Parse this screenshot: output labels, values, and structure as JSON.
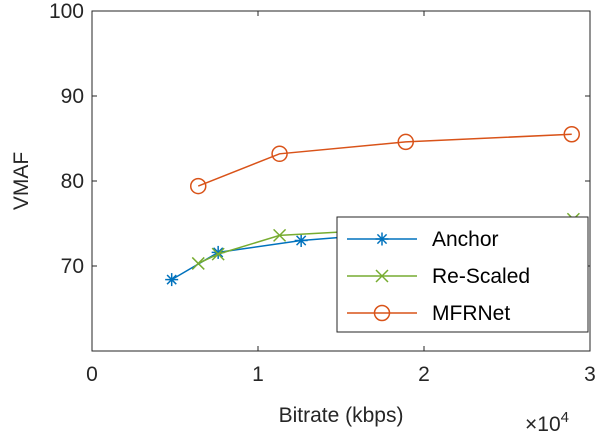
{
  "chart_data": {
    "type": "line",
    "xlabel": "Bitrate (kbps)",
    "ylabel": "VMAF",
    "x_exponent_prefix": "×10",
    "x_exponent_power": "4",
    "xlim": [
      0,
      30000
    ],
    "ylim": [
      60,
      100
    ],
    "x_ticks": [
      0,
      10000,
      20000,
      30000
    ],
    "x_tick_labels": [
      "0",
      "1",
      "2",
      "3"
    ],
    "y_ticks": [
      70,
      80,
      90,
      100
    ],
    "y_tick_labels": [
      "70",
      "80",
      "90",
      "100"
    ],
    "grid": false,
    "legend_position": "bottom-right",
    "series": [
      {
        "name": "Anchor",
        "color": "#0072BD",
        "marker": "asterisk",
        "x": [
          4800,
          7600,
          12600,
          16500
        ],
        "y": [
          68.4,
          71.6,
          73.0,
          73.6
        ]
      },
      {
        "name": "Re-Scaled",
        "color": "#77AC30",
        "marker": "x",
        "x": [
          6400,
          7600,
          11300,
          29000
        ],
        "y": [
          70.3,
          71.4,
          73.6,
          75.5
        ]
      },
      {
        "name": "MFRNet",
        "color": "#D95319",
        "marker": "circle",
        "x": [
          6400,
          11300,
          18900,
          28900
        ],
        "y": [
          79.4,
          83.2,
          84.6,
          85.5
        ]
      }
    ]
  }
}
